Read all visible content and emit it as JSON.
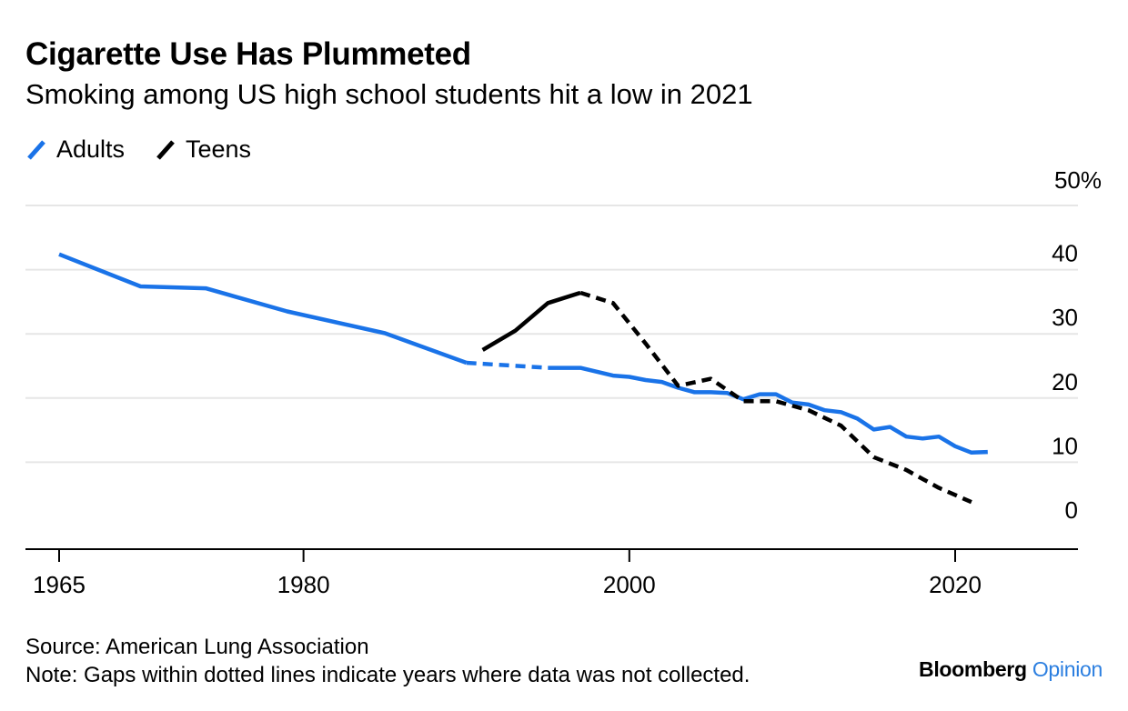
{
  "colors": {
    "adults": "#1a73e8",
    "teens": "#000000",
    "grid": "#e6e6e6",
    "axis": "#000000",
    "opinion": "#2c7fe0"
  },
  "legend": {
    "adults": "Adults",
    "teens": "Teens"
  },
  "source": "Source: American Lung Association",
  "note": "Note: Gaps within dotted lines indicate years where data was not collected.",
  "brand": {
    "name": "Bloomberg",
    "suffix": "Opinion"
  },
  "chart_data": {
    "type": "line",
    "title": "Cigarette Use Has Plummeted",
    "subtitle": "Smoking among US high school students hit a low in 2021",
    "xlabel": "",
    "ylabel": "",
    "xlim": [
      1965,
      2027
    ],
    "ylim": [
      0,
      50
    ],
    "x_ticks": [
      1965,
      1980,
      2000,
      2020
    ],
    "y_ticks": [
      0,
      10,
      20,
      30,
      40,
      50
    ],
    "y_tick_labels": [
      "0",
      "10",
      "20",
      "30",
      "40",
      "50%"
    ],
    "grid": true,
    "legend_position": "top-left",
    "series": [
      {
        "name": "Adults",
        "style": "solid",
        "x": [
          1965,
          1970,
          1974,
          1979,
          1985,
          1990
        ],
        "y": [
          42.4,
          37.4,
          37.1,
          33.5,
          30.1,
          25.5
        ]
      },
      {
        "name": "Adults",
        "style": "dotted",
        "x": [
          1990,
          1995
        ],
        "y": [
          25.5,
          24.7
        ]
      },
      {
        "name": "Adults",
        "style": "solid",
        "x": [
          1995,
          1997,
          1999,
          2000,
          2001,
          2002,
          2003,
          2004,
          2005,
          2006,
          2007,
          2008,
          2009,
          2010,
          2011,
          2012,
          2013,
          2014,
          2015,
          2016,
          2017,
          2018,
          2019,
          2020,
          2021,
          2022
        ],
        "y": [
          24.7,
          24.7,
          23.5,
          23.3,
          22.8,
          22.5,
          21.6,
          20.9,
          20.9,
          20.8,
          19.8,
          20.6,
          20.6,
          19.3,
          19.0,
          18.1,
          17.8,
          16.8,
          15.1,
          15.5,
          14.0,
          13.7,
          14.0,
          12.5,
          11.5,
          11.6
        ]
      },
      {
        "name": "Teens",
        "style": "solid",
        "x": [
          1991,
          1993,
          1995,
          1997
        ],
        "y": [
          27.5,
          30.5,
          34.8,
          36.4
        ]
      },
      {
        "name": "Teens",
        "style": "dotted",
        "x": [
          1997,
          1999,
          2001,
          2003,
          2005,
          2007,
          2009,
          2011,
          2013,
          2015,
          2017,
          2019,
          2021
        ],
        "y": [
          36.4,
          34.8,
          28.5,
          21.9,
          23.0,
          19.5,
          19.5,
          18.1,
          15.7,
          10.8,
          8.8,
          6.0,
          3.8
        ]
      }
    ]
  }
}
